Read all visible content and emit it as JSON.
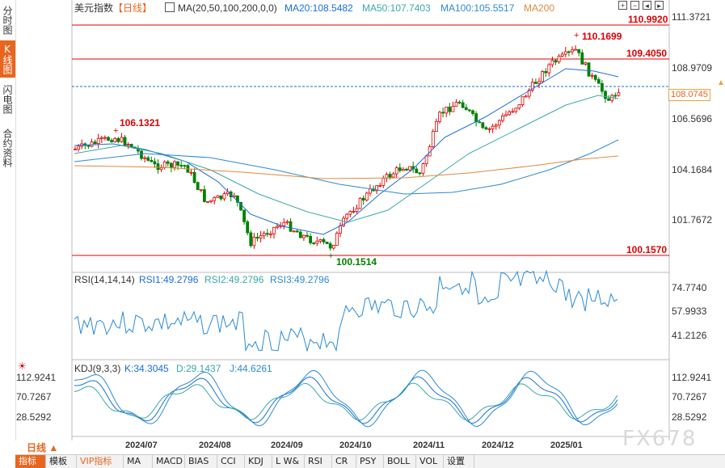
{
  "sidebar": {
    "tabs": [
      {
        "label": "分时图",
        "active": false
      },
      {
        "label": "K线图",
        "active": true
      },
      {
        "label": "闪电图",
        "active": false
      },
      {
        "label": "合约资料",
        "active": false
      }
    ]
  },
  "header": {
    "symbol": "美元指数",
    "period_tag": "【日线】",
    "ma_params": "MA(20,50,100,200,0,0)",
    "ma20": "MA20:108.5482",
    "ma50": "MA50:107.7403",
    "ma100": "MA100:105.5517",
    "ma200": "MA200"
  },
  "price_axis": [
    "111.3721",
    "108.9709",
    "106.5696",
    "104.1684",
    "101.7672"
  ],
  "current_price": "108.0745",
  "levels": [
    {
      "label": "110.9920",
      "color": "#e00000"
    },
    {
      "label": "109.4050",
      "color": "#e00000"
    },
    {
      "label": "100.1570",
      "color": "#e00000"
    }
  ],
  "annotations": {
    "high_right": "110.1699",
    "high_left": "106.1321",
    "low": "100.1514"
  },
  "rsi": {
    "params": "RSI(14,14,14)",
    "rsi1": "RSI1:49.2796",
    "rsi2": "RSI2:49.2796",
    "rsi3": "RSI3:49.2796",
    "axis": [
      "74.7740",
      "57.9933",
      "41.2126"
    ]
  },
  "kdj": {
    "params": "KDJ(9,3,3)",
    "k": "K:34.3045",
    "d": "D:29.1437",
    "j": "J:44.6261",
    "axis": [
      "112.9241",
      "70.7267",
      "28.5292"
    ]
  },
  "x_axis": [
    "2024/07",
    "2024/08",
    "2024/09",
    "2024/10",
    "2024/11",
    "2024/12",
    "2025/01"
  ],
  "period_label": "日线 ▲",
  "bottom_tabs": [
    "指标",
    "模板",
    "VIP指标",
    "MA",
    "MACD",
    "BIAS",
    "CCI",
    "KDJ",
    "L W&",
    "RSI",
    "CR",
    "PSY",
    "BOLL",
    "VOL",
    "设置"
  ],
  "watermark": "FX678",
  "colors": {
    "up": "#e00000",
    "down": "#008000",
    "ma20": "#1a6ed8",
    "ma50": "#39a8a8",
    "ma100": "#2a8bd6",
    "ma200": "#e08a3c",
    "accent": "#e8651f"
  }
}
